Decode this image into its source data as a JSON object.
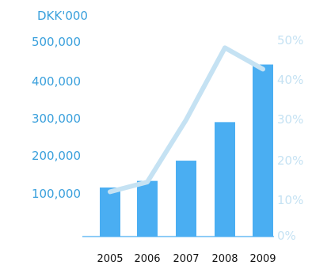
{
  "chart_data": {
    "type": "bar",
    "unit_label": "DKK'000",
    "categories": [
      "2005",
      "2006",
      "2007",
      "2008",
      "2009"
    ],
    "series": [
      {
        "type": "bar",
        "axis": "left",
        "values": [
          126000,
          143000,
          195000,
          294000,
          442000
        ],
        "color": "#4aaef2"
      },
      {
        "type": "line",
        "axis": "right",
        "values": [
          11.5,
          14,
          30,
          48.5,
          43
        ],
        "color": "#c5e2f3"
      }
    ],
    "ylim_left": [
      0,
      500000
    ],
    "yticks_left": [
      "100,000",
      "200,000",
      "300,000",
      "400,000",
      "500,000"
    ],
    "ylim_right": [
      0,
      50
    ],
    "yticks_right": [
      "0%",
      "10%",
      "20%",
      "30%",
      "40%",
      "50%"
    ],
    "grid": false,
    "baseline_color": "#4aaef2"
  }
}
